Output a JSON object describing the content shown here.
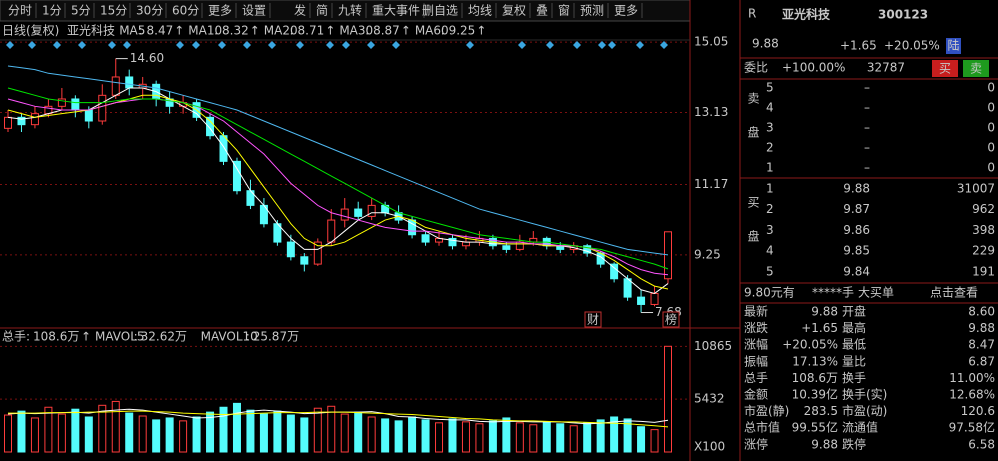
{
  "toolbar": {
    "groups": [
      [
        "分时",
        "1分",
        "5分",
        "15分",
        "30分",
        "60分",
        "更多",
        "设置"
      ],
      [
        "发",
        "简",
        "九转",
        "重大事件"
      ],
      [
        "删自选",
        "均线",
        "复权",
        "叠",
        "窗",
        "预测",
        "更多"
      ]
    ]
  },
  "chart_data": [
    {
      "type": "candlestick",
      "period_label": "日线(复权)",
      "stock_name": "亚光科技",
      "label_separator": ":",
      "trend_arrow": "↑",
      "open": [
        12.7,
        13.0,
        12.8,
        13.1,
        13.3,
        13.5,
        13.2,
        12.9,
        13.6,
        14.1,
        13.8,
        13.9,
        13.5,
        13.3,
        13.4,
        13.0,
        12.5,
        11.8,
        11.0,
        10.6,
        10.1,
        9.6,
        9.2,
        9.0,
        9.6,
        10.2,
        10.5,
        10.3,
        10.6,
        10.4,
        10.2,
        9.8,
        9.6,
        9.7,
        9.5,
        9.6,
        9.7,
        9.5,
        9.4,
        9.6,
        9.7,
        9.5,
        9.4,
        9.5,
        9.3,
        9.0,
        8.6,
        8.1,
        7.9,
        8.6
      ],
      "high": [
        13.2,
        13.1,
        13.3,
        13.5,
        13.8,
        13.6,
        13.3,
        13.9,
        14.6,
        14.3,
        14.1,
        14.0,
        13.7,
        13.6,
        13.5,
        13.1,
        12.6,
        11.9,
        11.3,
        10.8,
        10.2,
        9.8,
        9.3,
        9.7,
        10.5,
        10.8,
        10.7,
        10.8,
        10.7,
        10.6,
        10.3,
        9.9,
        9.9,
        9.8,
        9.8,
        9.9,
        9.8,
        9.6,
        9.8,
        9.9,
        9.75,
        9.6,
        9.6,
        9.55,
        9.35,
        9.05,
        8.7,
        8.3,
        8.4,
        9.88
      ],
      "low": [
        12.6,
        12.6,
        12.7,
        13.0,
        13.2,
        13.0,
        12.7,
        12.8,
        13.5,
        13.6,
        13.5,
        13.3,
        13.1,
        13.1,
        12.9,
        12.4,
        11.7,
        10.9,
        10.5,
        10.0,
        9.5,
        9.1,
        8.8,
        8.95,
        9.5,
        10.0,
        10.2,
        10.2,
        10.3,
        10.1,
        9.7,
        9.5,
        9.5,
        9.4,
        9.4,
        9.5,
        9.4,
        9.3,
        9.35,
        9.5,
        9.4,
        9.3,
        9.3,
        9.2,
        8.9,
        8.5,
        8.0,
        7.68,
        7.85,
        8.47
      ],
      "close": [
        13.0,
        12.8,
        13.1,
        13.3,
        13.5,
        13.2,
        12.9,
        13.6,
        14.1,
        13.8,
        13.9,
        13.5,
        13.3,
        13.4,
        13.0,
        12.5,
        11.8,
        11.0,
        10.6,
        10.1,
        9.6,
        9.2,
        9.0,
        9.6,
        10.2,
        10.5,
        10.3,
        10.6,
        10.4,
        10.2,
        9.8,
        9.6,
        9.7,
        9.5,
        9.6,
        9.7,
        9.5,
        9.4,
        9.6,
        9.7,
        9.5,
        9.4,
        9.5,
        9.3,
        9.0,
        8.6,
        8.1,
        7.9,
        8.2,
        9.88
      ],
      "up_color": "#ff3c3c",
      "down_color": "#54fcfc",
      "series": [
        {
          "name": "MA5",
          "color": "#ffffff",
          "values": [
            13.0,
            12.95,
            13.0,
            13.1,
            13.2,
            13.2,
            13.2,
            13.4,
            13.6,
            13.8,
            13.8,
            13.7,
            13.5,
            13.3,
            13.1,
            12.7,
            12.2,
            11.6,
            11.0,
            10.6,
            10.1,
            9.7,
            9.4,
            9.4,
            9.6,
            9.9,
            10.2,
            10.4,
            10.4,
            10.3,
            10.1,
            9.9,
            9.7,
            9.65,
            9.6,
            9.6,
            9.55,
            9.55,
            9.55,
            9.55,
            9.5,
            9.5,
            9.45,
            9.35,
            9.2,
            8.9,
            8.6,
            8.3,
            8.2,
            8.47
          ]
        },
        {
          "name": "MA10",
          "color": "#ffff00",
          "values": [
            13.2,
            13.1,
            13.0,
            13.05,
            13.1,
            13.15,
            13.2,
            13.3,
            13.4,
            13.5,
            13.6,
            13.6,
            13.5,
            13.4,
            13.2,
            12.9,
            12.5,
            12.1,
            11.6,
            11.1,
            10.6,
            10.1,
            9.7,
            9.5,
            9.5,
            9.6,
            9.8,
            10.0,
            10.2,
            10.3,
            10.2,
            10.0,
            9.9,
            9.8,
            9.7,
            9.65,
            9.6,
            9.55,
            9.55,
            9.55,
            9.5,
            9.5,
            9.5,
            9.45,
            9.3,
            9.1,
            8.85,
            8.6,
            8.4,
            8.32
          ]
        },
        {
          "name": "MA20",
          "color": "#ff55ff",
          "values": [
            13.5,
            13.4,
            13.3,
            13.25,
            13.2,
            13.2,
            13.2,
            13.3,
            13.4,
            13.45,
            13.5,
            13.5,
            13.45,
            13.4,
            13.3,
            13.1,
            12.9,
            12.6,
            12.3,
            12.0,
            11.6,
            11.2,
            10.9,
            10.6,
            10.4,
            10.3,
            10.2,
            10.1,
            10.0,
            9.95,
            9.9,
            9.9,
            9.85,
            9.8,
            9.75,
            9.7,
            9.65,
            9.6,
            9.6,
            9.55,
            9.55,
            9.5,
            9.5,
            9.45,
            9.35,
            9.2,
            9.0,
            8.85,
            8.75,
            8.71
          ]
        },
        {
          "name": "MA30",
          "color": "#00e600",
          "values": [
            13.8,
            13.7,
            13.6,
            13.5,
            13.45,
            13.4,
            13.4,
            13.4,
            13.45,
            13.5,
            13.5,
            13.5,
            13.45,
            13.4,
            13.3,
            13.2,
            13.0,
            12.8,
            12.6,
            12.4,
            12.2,
            12.0,
            11.8,
            11.6,
            11.4,
            11.2,
            11.0,
            10.8,
            10.6,
            10.4,
            10.3,
            10.2,
            10.1,
            10.0,
            9.9,
            9.8,
            9.75,
            9.7,
            9.65,
            9.6,
            9.6,
            9.55,
            9.5,
            9.45,
            9.4,
            9.3,
            9.2,
            9.1,
            9.0,
            8.87
          ]
        },
        {
          "name": "MA60",
          "color": "#4fb8f0",
          "values": [
            14.4,
            14.35,
            14.3,
            14.2,
            14.15,
            14.1,
            14.05,
            14.0,
            13.95,
            13.9,
            13.85,
            13.8,
            13.7,
            13.6,
            13.5,
            13.4,
            13.3,
            13.2,
            13.05,
            12.9,
            12.75,
            12.6,
            12.45,
            12.3,
            12.15,
            12.0,
            11.85,
            11.7,
            11.55,
            11.4,
            11.25,
            11.1,
            10.95,
            10.8,
            10.65,
            10.5,
            10.4,
            10.3,
            10.2,
            10.1,
            10.0,
            9.9,
            9.8,
            9.7,
            9.6,
            9.5,
            9.4,
            9.35,
            9.3,
            9.25
          ]
        }
      ],
      "annotations": [
        {
          "value": 14.6,
          "label": "14.60"
        },
        {
          "value": 7.68,
          "label": "7.68"
        }
      ],
      "markers": [
        "财",
        "榜"
      ],
      "ylim": [
        7.34,
        15.38
      ],
      "yticks": [
        15.05,
        13.13,
        11.17,
        9.25
      ],
      "grid": true
    },
    {
      "type": "bar",
      "total_label": "总手",
      "total": "108.6万",
      "label_separator": ":",
      "trend_arrow": "↑",
      "values": [
        3800,
        4200,
        3500,
        4600,
        3900,
        4400,
        3600,
        4800,
        5200,
        4000,
        3700,
        3300,
        3500,
        3200,
        3600,
        4100,
        4600,
        5000,
        4300,
        3900,
        4200,
        3800,
        3500,
        4500,
        4700,
        3900,
        4100,
        3600,
        3400,
        3200,
        3600,
        3300,
        3000,
        3400,
        3100,
        2900,
        3200,
        3500,
        3000,
        2800,
        3100,
        2900,
        2700,
        3000,
        3300,
        3600,
        3400,
        2600,
        2300,
        10865
      ],
      "series": [
        {
          "name": "MAVOL5",
          "value_label": "32.62万",
          "color": "#ffffff",
          "values": [
            3900,
            4000,
            3950,
            4000,
            4050,
            4100,
            4000,
            4200,
            4300,
            4400,
            4300,
            4100,
            3900,
            3700,
            3500,
            3550,
            3700,
            4000,
            4200,
            4300,
            4200,
            4100,
            3950,
            4000,
            4100,
            4100,
            4100,
            4150,
            3950,
            3650,
            3600,
            3450,
            3350,
            3300,
            3300,
            3150,
            3100,
            3150,
            3150,
            3100,
            3100,
            3100,
            3000,
            2900,
            2950,
            3100,
            3200,
            3150,
            3050,
            3262
          ]
        },
        {
          "name": "MAVOL10",
          "value_label": "25.87万",
          "color": "#ffff00",
          "values": [
            4000,
            4000,
            4000,
            4050,
            4050,
            4050,
            4100,
            4100,
            4150,
            4200,
            4200,
            4150,
            4100,
            4000,
            3950,
            3900,
            3850,
            3900,
            3950,
            4000,
            4050,
            4050,
            4050,
            4100,
            4100,
            4100,
            4050,
            4000,
            3950,
            3900,
            3850,
            3750,
            3650,
            3550,
            3450,
            3400,
            3300,
            3250,
            3200,
            3200,
            3150,
            3100,
            3100,
            3050,
            3000,
            2950,
            2900,
            2800,
            2700,
            2587
          ]
        }
      ],
      "ylim": [
        0,
        11000
      ],
      "yticks": [
        10865,
        5432
      ],
      "unit_label": "X100"
    }
  ],
  "quote": {
    "flag": "R",
    "name": "亚光科技",
    "code": "300123",
    "price": "9.88",
    "change": "+1.65",
    "change_pct": "+20.05%",
    "badge": "陆",
    "ratio_label": "委比",
    "ratio": "+100.00%",
    "ratio_volume": "32787",
    "buy_button": "买",
    "sell_button": "卖",
    "sell_label": "卖盘",
    "buy_label": "买盘",
    "sell_levels": [
      [
        5,
        "–",
        0
      ],
      [
        4,
        "–",
        0
      ],
      [
        3,
        "–",
        0
      ],
      [
        2,
        "–",
        0
      ],
      [
        1,
        "–",
        0
      ]
    ],
    "buy_levels": [
      [
        1,
        "9.88",
        31007
      ],
      [
        2,
        "9.87",
        962
      ],
      [
        3,
        "9.86",
        398
      ],
      [
        4,
        "9.85",
        229
      ],
      [
        5,
        "9.84",
        191
      ]
    ],
    "big_order": [
      "9.80元有",
      "*****手",
      "大买单",
      "点击查看"
    ],
    "stats": [
      [
        {
          "label": "最新",
          "value": "9.88",
          "color": "#ff3c3c"
        },
        {
          "label": "开盘",
          "value": "8.60",
          "color": "#ff3c3c"
        }
      ],
      [
        {
          "label": "涨跌",
          "value": "+1.65",
          "color": "#ff3c3c"
        },
        {
          "label": "最高",
          "value": "9.88",
          "color": "#ff3c3c"
        }
      ],
      [
        {
          "label": "涨幅",
          "value": "+20.05%",
          "color": "#ff3c3c"
        },
        {
          "label": "最低",
          "value": "8.47",
          "color": "#ffffff"
        }
      ],
      [
        {
          "label": "振幅",
          "value": "17.13%",
          "color": "#ffffff"
        },
        {
          "label": "量比",
          "value": "6.87",
          "color": "#ff3c3c"
        }
      ],
      [
        {
          "label": "总手",
          "value": "108.6万",
          "color": "#ffff00"
        },
        {
          "label": "换手",
          "value": "11.00%",
          "color": "#ffff00"
        }
      ],
      [
        {
          "label": "金额",
          "value": "10.39亿",
          "color": "#54fcfc"
        },
        {
          "label": "换手(实)",
          "value": "12.68%",
          "color": "#ffff00"
        }
      ],
      [
        {
          "label": "市盈(静)",
          "value": "283.5",
          "color": "#ffffff"
        },
        {
          "label": "市盈(动)",
          "value": "120.6",
          "color": "#ffffff"
        }
      ],
      [
        {
          "label": "总市值",
          "value": "99.55亿",
          "color": "#ffff00"
        },
        {
          "label": "流通值",
          "value": "97.58亿",
          "color": "#ffff00"
        }
      ],
      [
        {
          "label": "涨停",
          "value": "9.88",
          "color": "#ff3c3c"
        },
        {
          "label": "跌停",
          "value": "6.58",
          "color": "#00e600"
        }
      ]
    ]
  }
}
